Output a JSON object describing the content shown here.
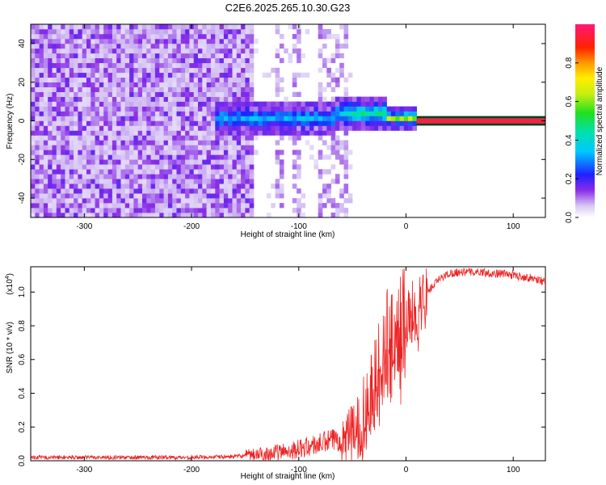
{
  "figure": {
    "title": "C2E6.2025.265.10.30.G23"
  },
  "chart_data": [
    {
      "type": "heatmap",
      "xlabel": "Height of straight line (km)",
      "ylabel": "Frequency (Hz)",
      "xlim": [
        -350,
        130
      ],
      "ylim": [
        -50,
        50
      ],
      "xticks": [
        -300,
        -200,
        -100,
        0,
        100
      ],
      "yticks": [
        -40,
        -20,
        0,
        20,
        40
      ],
      "colorbar": {
        "label": "Normalized spectral amplitude",
        "range": [
          0,
          1
        ],
        "ticks": [
          0.0,
          0.2,
          0.4,
          0.6,
          0.8
        ]
      },
      "features": [
        {
          "x_range": [
            -350,
            -145
          ],
          "freq_range": [
            -50,
            50
          ],
          "amplitude": 0.1
        },
        {
          "x_range": [
            -180,
            10
          ],
          "freq_center": [
            0,
            5
          ],
          "amplitude": 0.35
        },
        {
          "x_range": [
            10,
            130
          ],
          "freq_center": [
            0,
            0
          ],
          "amplitude": 0.95
        }
      ]
    },
    {
      "type": "line",
      "xlabel": "Height of straight line (km)",
      "ylabel": "SNR (10 * v/v)",
      "y_multiplier": "(x10",
      "y_multiplier_exp": "4",
      "y_multiplier_close": ")",
      "xlim": [
        -350,
        130
      ],
      "ylim": [
        0,
        1.15
      ],
      "xticks": [
        -300,
        -200,
        -100,
        0,
        100
      ],
      "yticks": [
        0.0,
        0.2,
        0.4,
        0.6,
        0.8,
        1.0
      ],
      "series": [
        {
          "color": "#ee2222",
          "x": [
            -350,
            -300,
            -250,
            -200,
            -160,
            -140,
            -120,
            -100,
            -80,
            -70,
            -60,
            -50,
            -40,
            -30,
            -20,
            -10,
            0,
            10,
            20,
            30,
            40,
            50,
            60,
            70,
            80,
            90,
            100,
            110,
            120,
            130
          ],
          "y": [
            0.02,
            0.02,
            0.02,
            0.02,
            0.025,
            0.035,
            0.05,
            0.07,
            0.1,
            0.12,
            0.13,
            0.16,
            0.25,
            0.45,
            0.65,
            0.75,
            0.82,
            0.9,
            1.0,
            1.07,
            1.11,
            1.12,
            1.12,
            1.12,
            1.11,
            1.11,
            1.1,
            1.09,
            1.08,
            1.06
          ]
        }
      ]
    }
  ]
}
